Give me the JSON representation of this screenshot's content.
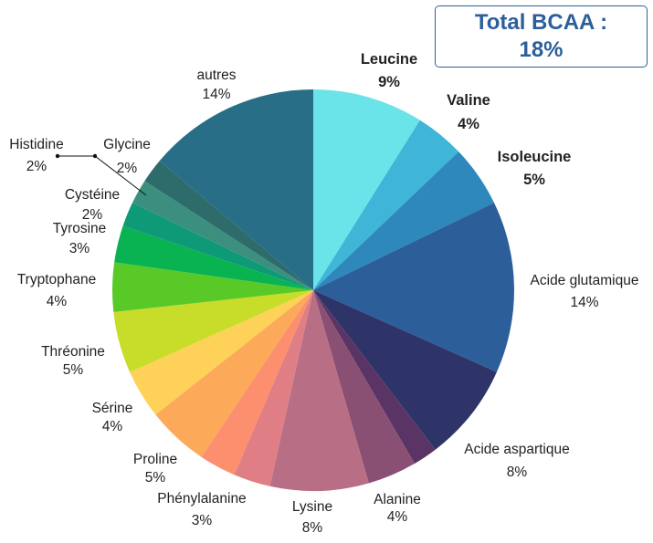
{
  "chart_data": {
    "type": "pie",
    "start_angle_deg": 0,
    "direction": "clockwise",
    "highlight_color": "#2c5f9a",
    "slices": [
      {
        "label": "Leucine",
        "value": 9,
        "value_text": "9%",
        "color": "#6ae4e9",
        "highlight": true
      },
      {
        "label": "Valine",
        "value": 4,
        "value_text": "4%",
        "color": "#3fb6d8",
        "highlight": true
      },
      {
        "label": "Isoleucine",
        "value": 5,
        "value_text": "5%",
        "color": "#2e88bb",
        "highlight": true
      },
      {
        "label": "Acide glutamique",
        "value": 14,
        "value_text": "14%",
        "color": "#2c5f9a"
      },
      {
        "label": "Acide aspartique",
        "value": 8,
        "value_text": "8%",
        "color": "#2e3468"
      },
      {
        "label": "",
        "value": 2,
        "value_text": "",
        "color": "#5b3466"
      },
      {
        "label": "Alanine",
        "value": 4,
        "value_text": "4%",
        "color": "#8a5074"
      },
      {
        "label": "Lysine",
        "value": 8,
        "value_text": "8%",
        "color": "#b86f85"
      },
      {
        "label": "Phénylalanine",
        "value": 3,
        "value_text": "3%",
        "color": "#e07e85"
      },
      {
        "label": "",
        "value": 3,
        "value_text": "",
        "color": "#fb8f6e"
      },
      {
        "label": "Proline",
        "value": 5,
        "value_text": "5%",
        "color": "#fca95a"
      },
      {
        "label": "Sérine",
        "value": 4,
        "value_text": "4%",
        "color": "#fed158"
      },
      {
        "label": "Thréonine",
        "value": 5,
        "value_text": "5%",
        "color": "#c8dc2a"
      },
      {
        "label": "Tryptophane",
        "value": 4,
        "value_text": "4%",
        "color": "#58c927"
      },
      {
        "label": "Tyrosine",
        "value": 3,
        "value_text": "3%",
        "color": "#0ab352"
      },
      {
        "label": "Cystéine",
        "value": 2,
        "value_text": "2%",
        "color": "#0e9a76"
      },
      {
        "label": "Histidine",
        "value": 2,
        "value_text": "2%",
        "color": "#3c8f7e"
      },
      {
        "label": "Glycine",
        "value": 2,
        "value_text": "2%",
        "color": "#2e6b6b"
      },
      {
        "label": "autres",
        "value": 14,
        "value_text": "14%",
        "color": "#276e86"
      }
    ]
  },
  "bcaa_box": {
    "line1": "Total BCAA :",
    "line2": "18%"
  }
}
